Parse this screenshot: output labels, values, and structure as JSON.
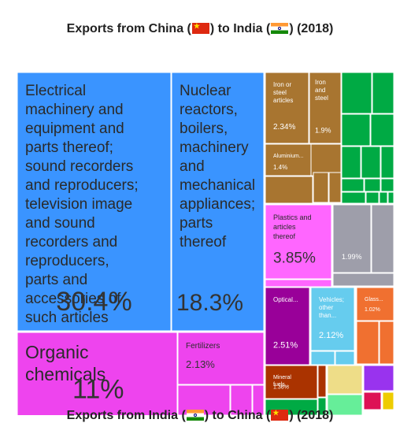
{
  "title": {
    "before": "Exports from China (",
    "mid": ") to India (",
    "after": ") (2018)"
  },
  "footer": {
    "before": "Exports from India (",
    "mid": ") to China (",
    "after": ") (2018)"
  },
  "chart_data": {
    "type": "treemap",
    "items": [
      {
        "label": "Electrical machinery and equipment and parts thereof; sound recorders and reproducers; television image and sound recorders and reproducers, parts and accessories of such articles",
        "pct": "30.4%",
        "value": 30.4,
        "color": "#3a94ff"
      },
      {
        "label": "Nuclear reactors, boilers, machinery and mechanical appliances; parts thereof",
        "pct": "18.3%",
        "value": 18.3,
        "color": "#3a94ff"
      },
      {
        "label": "Organic chemicals",
        "pct": "11%",
        "value": 11.0,
        "color": "#ee44ee"
      },
      {
        "label": "Fertilizers",
        "pct": "2.13%",
        "value": 2.13,
        "color": "#ee44ee"
      },
      {
        "label": "Iron or steel articles",
        "pct": "2.34%",
        "value": 2.34,
        "color": "#a87530"
      },
      {
        "label": "Iron and steel",
        "pct": "1.9%",
        "value": 1.9,
        "color": "#a87530"
      },
      {
        "label": "Aluminium...",
        "pct": "1.4%",
        "value": 1.4,
        "color": "#a87530"
      },
      {
        "label": "Plastics and articles thereof",
        "pct": "3.85%",
        "value": 3.85,
        "color": "#ff66ff"
      },
      {
        "label": "",
        "pct": "1.99%",
        "value": 1.99,
        "color": "#9e9eaa"
      },
      {
        "label": "Optical...",
        "pct": "2.51%",
        "value": 2.51,
        "color": "#990099"
      },
      {
        "label": "Vehicles; other than...",
        "pct": "2.12%",
        "value": 2.12,
        "color": "#66ccee"
      },
      {
        "label": "Glass...",
        "pct": "1.02%",
        "value": 1.02,
        "color": "#f07030"
      },
      {
        "label": "Mineral fuels...",
        "pct": "1.36%",
        "value": 1.36,
        "color": "#aa3300"
      }
    ]
  }
}
